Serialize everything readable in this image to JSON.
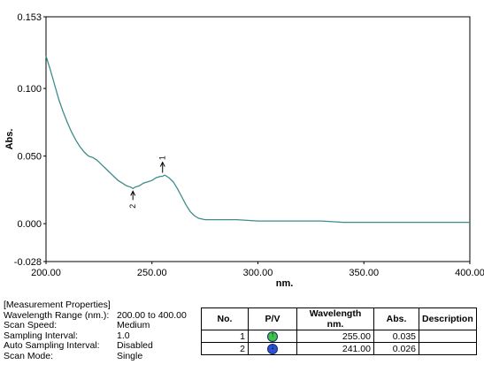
{
  "chart_data": {
    "type": "line",
    "xlabel": "nm.",
    "ylabel": "Abs.",
    "xlim": [
      200.0,
      400.0
    ],
    "ylim": [
      -0.028,
      0.153
    ],
    "x_ticks": [
      "200.00",
      "250.00",
      "300.00",
      "350.00",
      "400.00"
    ],
    "y_ticks": [
      "0.153",
      "0.100",
      "0.050",
      "0.000",
      "-0.028"
    ],
    "y_tick_values": [
      0.153,
      0.1,
      0.05,
      0.0,
      -0.028
    ],
    "x_tick_values": [
      200,
      250,
      300,
      350,
      400
    ],
    "line_color": "#3f8c8c",
    "series": [
      {
        "x": [
          200,
          202,
          204,
          206,
          208,
          210,
          212,
          214,
          216,
          218,
          220,
          222,
          224,
          226,
          228,
          230,
          232,
          234,
          236,
          238,
          240,
          241,
          242,
          244,
          246,
          248,
          250,
          252,
          254,
          255,
          256,
          258,
          260,
          262,
          264,
          266,
          268,
          270,
          272,
          275,
          280,
          290,
          300,
          310,
          320,
          330,
          340,
          350,
          360,
          370,
          380,
          390,
          400
        ],
        "y": [
          0.124,
          0.114,
          0.103,
          0.092,
          0.083,
          0.075,
          0.068,
          0.062,
          0.057,
          0.053,
          0.05,
          0.049,
          0.047,
          0.044,
          0.041,
          0.038,
          0.035,
          0.032,
          0.03,
          0.028,
          0.027,
          0.026,
          0.027,
          0.028,
          0.03,
          0.031,
          0.032,
          0.034,
          0.035,
          0.035,
          0.036,
          0.034,
          0.031,
          0.026,
          0.02,
          0.014,
          0.009,
          0.006,
          0.004,
          0.003,
          0.003,
          0.003,
          0.002,
          0.002,
          0.002,
          0.002,
          0.001,
          0.001,
          0.001,
          0.001,
          0.001,
          0.001,
          0.001
        ]
      }
    ],
    "annotations": [
      {
        "label": "1",
        "x": 255.0,
        "y": 0.035,
        "kind": "peak"
      },
      {
        "label": "2",
        "x": 241.0,
        "y": 0.026,
        "kind": "valley"
      }
    ]
  },
  "measurement": {
    "heading": "[Measurement Properties]",
    "rows": [
      {
        "key": "Wavelength Range (nm.):",
        "value": "200.00 to 400.00"
      },
      {
        "key": "Scan Speed:",
        "value": "Medium"
      },
      {
        "key": "Sampling Interval:",
        "value": "1.0"
      },
      {
        "key": "Auto Sampling Interval:",
        "value": "Disabled"
      },
      {
        "key": "Scan Mode:",
        "value": "Single"
      }
    ]
  },
  "peak_table": {
    "headers": [
      "No.",
      "P/V",
      "Wavelength nm.",
      "Abs.",
      "Description"
    ],
    "rows": [
      {
        "no": "1",
        "pv": "peak",
        "pv_glyph": "↑",
        "wavelength": "255.00",
        "abs": "0.035",
        "description": ""
      },
      {
        "no": "2",
        "pv": "valley",
        "pv_glyph": "↓",
        "wavelength": "241.00",
        "abs": "0.026",
        "description": ""
      }
    ]
  }
}
